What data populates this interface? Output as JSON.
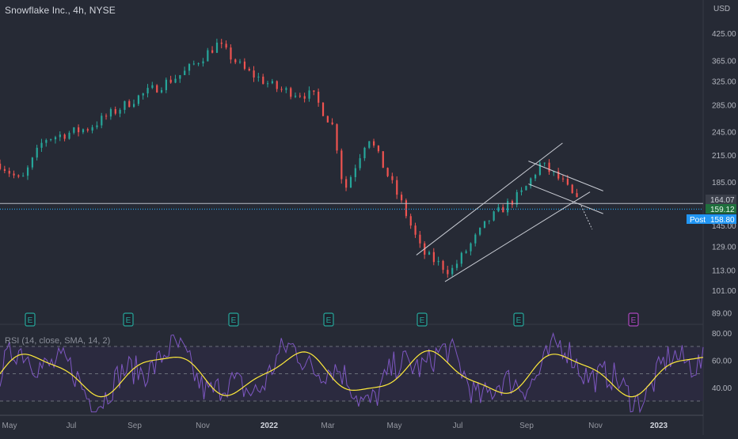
{
  "header": {
    "title": "Snowflake Inc., 4h, NYSE"
  },
  "price_axis": {
    "currency": "USD",
    "ticks": [
      "425.00",
      "365.00",
      "325.00",
      "285.00",
      "245.00",
      "215.00",
      "185.00",
      "145.00",
      "129.00",
      "113.00",
      "101.00",
      "89.00"
    ],
    "tags": [
      {
        "name": "hline",
        "text": "164.07",
        "bg": "#3a3e49",
        "fg": "#d1d4dc"
      },
      {
        "name": "last-price",
        "text": "159.12",
        "bg": "#1f6f3d",
        "fg": "#e6f4ea"
      },
      {
        "name": "post-price",
        "text": "158.80",
        "bg": "#2196f3",
        "fg": "#ffffff",
        "label": "Post"
      }
    ]
  },
  "rsi": {
    "title": "RSI (14, close, SMA, 14, 2)",
    "ticks": [
      "80.00",
      "60.00",
      "40.00"
    ]
  },
  "time_axis": {
    "labels": [
      "May",
      "Jul",
      "Sep",
      "Nov",
      "2022",
      "Mar",
      "May",
      "Jul",
      "Sep",
      "Nov",
      "2023"
    ]
  },
  "earnings": [
    {
      "label": "E",
      "status": "past"
    },
    {
      "label": "E",
      "status": "past"
    },
    {
      "label": "E",
      "status": "past"
    },
    {
      "label": "E",
      "status": "past"
    },
    {
      "label": "E",
      "status": "past"
    },
    {
      "label": "E",
      "status": "past"
    },
    {
      "label": "E",
      "status": "upcoming"
    }
  ],
  "colors": {
    "up": "#26a69a",
    "down": "#ef5350",
    "rsi": "#7e57c2",
    "rsi_ma": "#ffeb3b",
    "channel": "#c9ccd4",
    "earn_past": "#26a69a",
    "earn_upcoming": "#ab47bc"
  },
  "chart_data": {
    "type": "candlestick",
    "symbol": "Snowflake Inc.",
    "interval": "4h",
    "exchange": "NYSE",
    "price_scale": "log",
    "price_path": [
      [
        "2021-05-01",
        205
      ],
      [
        "2021-05-20",
        185
      ],
      [
        "2021-06-10",
        235
      ],
      [
        "2021-07-20",
        250
      ],
      [
        "2021-09-01",
        295
      ],
      [
        "2021-10-15",
        340
      ],
      [
        "2021-11-15",
        400
      ],
      [
        "2021-12-10",
        345
      ],
      [
        "2022-01-10",
        310
      ],
      [
        "2022-02-10",
        300
      ],
      [
        "2022-03-01",
        250
      ],
      [
        "2022-03-10",
        175
      ],
      [
        "2022-04-01",
        240
      ],
      [
        "2022-05-01",
        165
      ],
      [
        "2022-05-20",
        125
      ],
      [
        "2022-06-15",
        112
      ],
      [
        "2022-07-20",
        150
      ],
      [
        "2022-08-20",
        175
      ],
      [
        "2022-09-05",
        205
      ],
      [
        "2022-09-25",
        185
      ],
      [
        "2022-10-12",
        160
      ]
    ],
    "horizontal_line": 164.07,
    "last_price": 159.12,
    "post_market_price": 158.8,
    "rsi_period": 14,
    "rsi_levels": [
      70,
      50,
      30
    ],
    "x_range": [
      "2021-05-01",
      "2023-01-31"
    ],
    "y_range": [
      89,
      440
    ]
  }
}
